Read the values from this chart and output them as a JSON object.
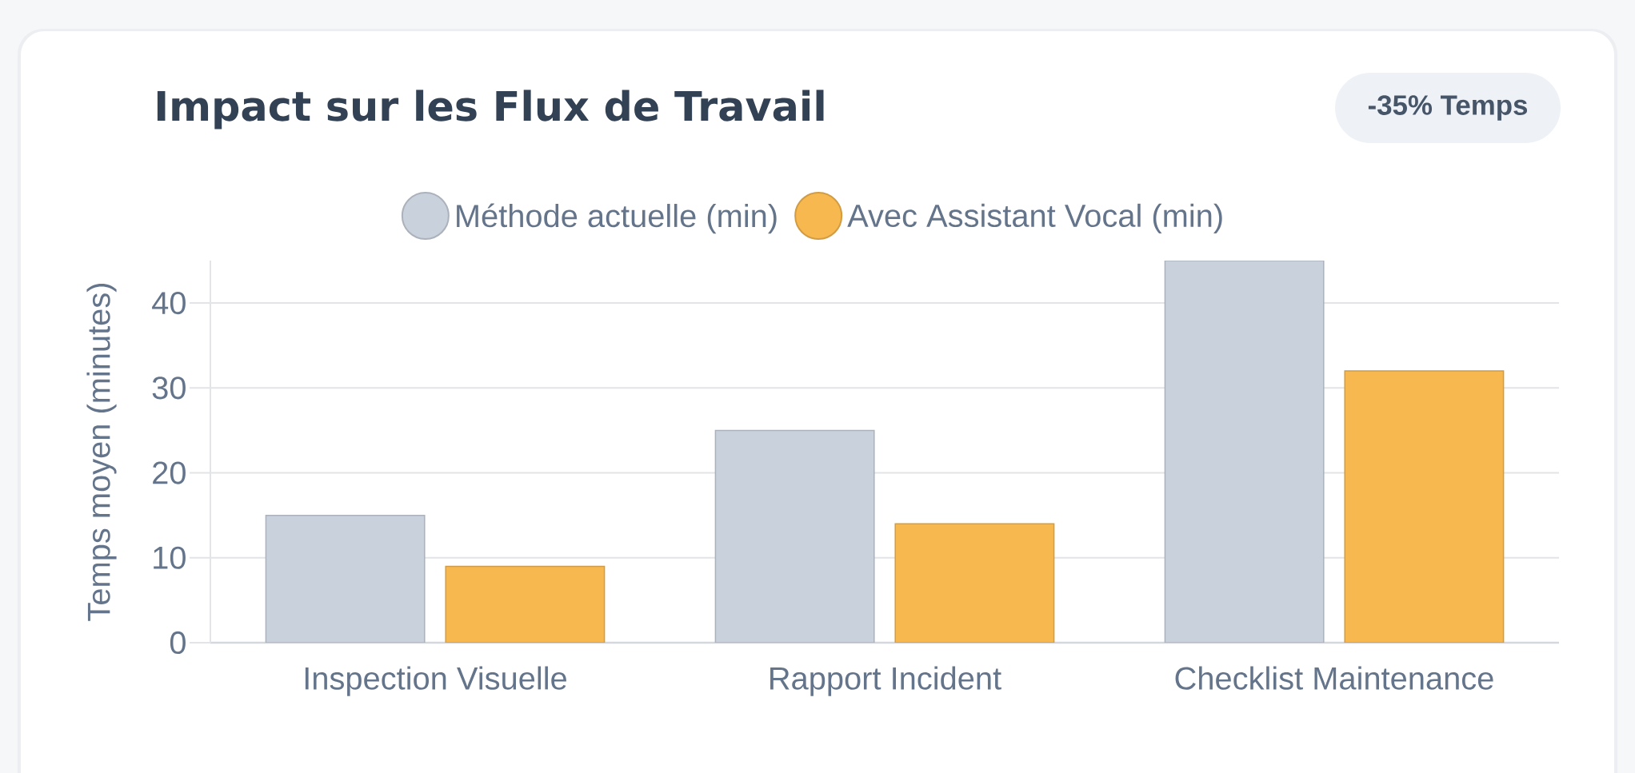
{
  "chart_data": {
    "type": "bar",
    "title": "Impact sur les Flux de Travail",
    "ylabel": "Temps moyen (minutes)",
    "annotations": [
      "-35% Temps"
    ],
    "categories": [
      "Inspection Visuelle",
      "Rapport Incident",
      "Checklist Maintenance"
    ],
    "series": [
      {
        "name": "Méthode actuelle (min)",
        "color": "#c9d1dc",
        "values": [
          15,
          25,
          45
        ]
      },
      {
        "name": "Avec Assistant Vocal (min)",
        "color": "#f6b84f",
        "values": [
          9,
          14,
          32
        ]
      }
    ],
    "ylim": [
      0,
      45
    ],
    "yticks": [
      0,
      10,
      20,
      30,
      40
    ],
    "grid": "y",
    "legend": "top"
  }
}
